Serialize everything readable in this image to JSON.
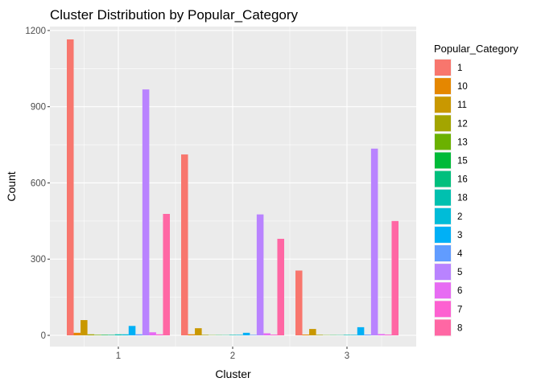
{
  "chart_data": {
    "type": "bar",
    "title": "Cluster Distribution by Popular_Category",
    "xlabel": "Cluster",
    "ylabel": "Count",
    "categories": [
      "1",
      "2",
      "3"
    ],
    "ylim": [
      0,
      1200
    ],
    "yticks": [
      0,
      300,
      600,
      900,
      1200
    ],
    "grid": true,
    "legend": {
      "title": "Popular_Category",
      "position": "right"
    },
    "series": [
      {
        "name": "1",
        "color": "#F8766D",
        "values": [
          1165,
          712,
          255
        ]
      },
      {
        "name": "10",
        "color": "#E58700",
        "values": [
          10,
          4,
          3
        ]
      },
      {
        "name": "11",
        "color": "#C99800",
        "values": [
          60,
          28,
          25
        ]
      },
      {
        "name": "12",
        "color": "#A3A500",
        "values": [
          4,
          2,
          2
        ]
      },
      {
        "name": "13",
        "color": "#6BB100",
        "values": [
          2,
          1,
          1
        ]
      },
      {
        "name": "15",
        "color": "#00BA38",
        "values": [
          2,
          1,
          1
        ]
      },
      {
        "name": "16",
        "color": "#00BF7D",
        "values": [
          2,
          1,
          1
        ]
      },
      {
        "name": "18",
        "color": "#00C0AF",
        "values": [
          4,
          2,
          2
        ]
      },
      {
        "name": "2",
        "color": "#00BCD8",
        "values": [
          4,
          2,
          2
        ]
      },
      {
        "name": "3",
        "color": "#00B0F6",
        "values": [
          37,
          10,
          32
        ]
      },
      {
        "name": "4",
        "color": "#619CFF",
        "values": [
          4,
          2,
          3
        ]
      },
      {
        "name": "5",
        "color": "#B983FF",
        "values": [
          968,
          476,
          735
        ]
      },
      {
        "name": "6",
        "color": "#E76BF3",
        "values": [
          12,
          8,
          5
        ]
      },
      {
        "name": "7",
        "color": "#FD61D1",
        "values": [
          4,
          3,
          3
        ]
      },
      {
        "name": "8",
        "color": "#FF67A4",
        "values": [
          478,
          380,
          450
        ]
      }
    ]
  }
}
